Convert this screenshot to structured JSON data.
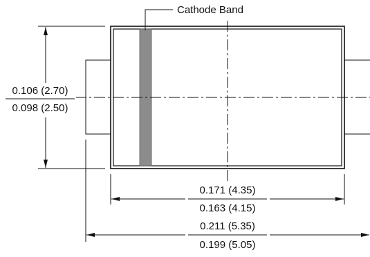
{
  "labels": {
    "cathode_band": "Cathode Band"
  },
  "dimensions": {
    "height": {
      "max": "0.106 (2.70)",
      "min": "0.098 (2.50)"
    },
    "body_length": {
      "max": "0.171 (4.35)",
      "min": "0.163 (4.15)"
    },
    "overall_length": {
      "max": "0.211 (5.35)",
      "min": "0.199 (5.05)"
    }
  },
  "colors": {
    "line": "#111111",
    "cathode_band_fill": "#8c8c8c"
  }
}
